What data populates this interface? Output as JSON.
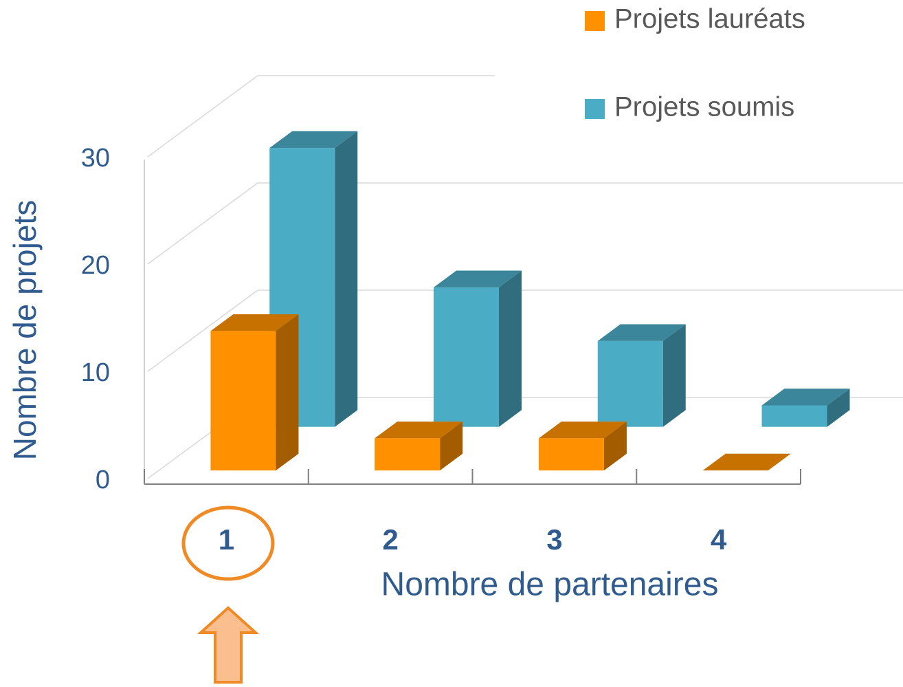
{
  "chart_data": {
    "type": "bar3d",
    "xlabel": "Nombre de partenaires",
    "ylabel": "Nombre de projets",
    "categories": [
      "1",
      "2",
      "3",
      "4"
    ],
    "series": [
      {
        "name": "Projets lauréats",
        "color": "#ff9100",
        "values": [
          13,
          3,
          3,
          0
        ]
      },
      {
        "name": "Projets soumis",
        "color": "#4bacc6",
        "values": [
          26,
          13,
          8,
          2
        ]
      }
    ],
    "ylim": [
      0,
      30
    ],
    "yticks": [
      0,
      10,
      20,
      30
    ],
    "grid": true,
    "legend": "top-right"
  }
}
